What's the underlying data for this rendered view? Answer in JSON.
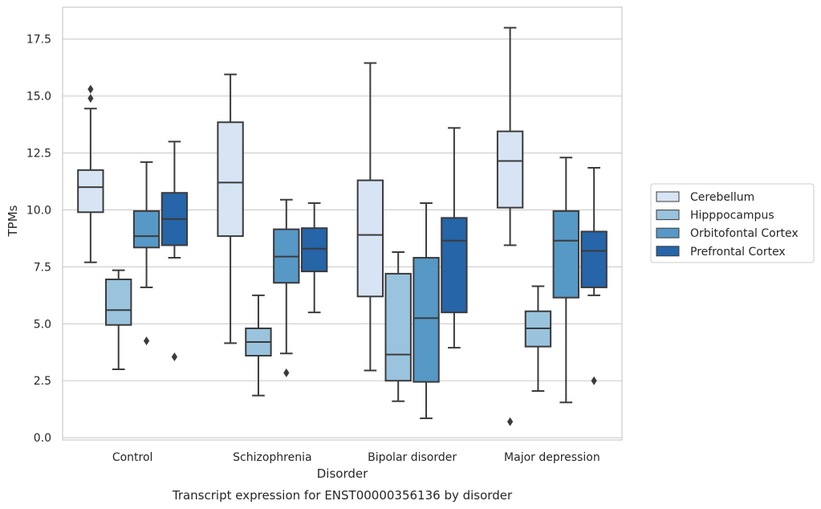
{
  "chart_data": {
    "type": "box",
    "title": "",
    "caption": "Transcript expression for ENST00000356136 by disorder",
    "xlabel": "Disorder",
    "ylabel": "TPMs",
    "ylim": [
      -0.1,
      18.9
    ],
    "yticks": [
      0.0,
      2.5,
      5.0,
      7.5,
      10.0,
      12.5,
      15.0,
      17.5
    ],
    "ytick_labels": [
      "0.0",
      "2.5",
      "5.0",
      "7.5",
      "10.0",
      "12.5",
      "15.0",
      "17.5"
    ],
    "grid": true,
    "legend_position": "right",
    "categories": [
      "Control",
      "Schizophrenia",
      "Bipolar disorder",
      "Major depression"
    ],
    "series": [
      {
        "name": "Cerebellum",
        "color": "#d6e4f3",
        "boxes": [
          {
            "whisker_low": 7.7,
            "q1": 9.9,
            "median": 11.0,
            "q3": 11.75,
            "whisker_high": 14.45,
            "outliers": [
              14.9,
              15.3
            ]
          },
          {
            "whisker_low": 4.15,
            "q1": 8.85,
            "median": 11.2,
            "q3": 13.85,
            "whisker_high": 15.95,
            "outliers": []
          },
          {
            "whisker_low": 2.95,
            "q1": 6.2,
            "median": 8.9,
            "q3": 11.3,
            "whisker_high": 16.45,
            "outliers": []
          },
          {
            "whisker_low": 8.45,
            "q1": 10.1,
            "median": 12.15,
            "q3": 13.45,
            "whisker_high": 18.0,
            "outliers": [
              0.7
            ]
          }
        ]
      },
      {
        "name": "Hipppocampus",
        "color": "#9ac3dd",
        "boxes": [
          {
            "whisker_low": 3.0,
            "q1": 4.95,
            "median": 5.6,
            "q3": 6.95,
            "whisker_high": 7.35,
            "outliers": []
          },
          {
            "whisker_low": 1.85,
            "q1": 3.6,
            "median": 4.2,
            "q3": 4.8,
            "whisker_high": 6.25,
            "outliers": []
          },
          {
            "whisker_low": 1.6,
            "q1": 2.5,
            "median": 3.65,
            "q3": 7.2,
            "whisker_high": 8.15,
            "outliers": []
          },
          {
            "whisker_low": 2.05,
            "q1": 4.0,
            "median": 4.8,
            "q3": 5.55,
            "whisker_high": 6.65,
            "outliers": []
          }
        ]
      },
      {
        "name": "Orbitofontal Cortex",
        "color": "#5698c6",
        "boxes": [
          {
            "whisker_low": 6.6,
            "q1": 8.35,
            "median": 8.85,
            "q3": 9.95,
            "whisker_high": 12.1,
            "outliers": [
              4.25
            ]
          },
          {
            "whisker_low": 3.7,
            "q1": 6.8,
            "median": 7.95,
            "q3": 9.15,
            "whisker_high": 10.45,
            "outliers": [
              2.85
            ]
          },
          {
            "whisker_low": 0.85,
            "q1": 2.45,
            "median": 5.25,
            "q3": 7.9,
            "whisker_high": 10.3,
            "outliers": []
          },
          {
            "whisker_low": 1.55,
            "q1": 6.15,
            "median": 8.65,
            "q3": 9.95,
            "whisker_high": 12.3,
            "outliers": []
          }
        ]
      },
      {
        "name": "Prefrontal Cortex",
        "color": "#2565a8",
        "boxes": [
          {
            "whisker_low": 7.9,
            "q1": 8.45,
            "median": 9.6,
            "q3": 10.75,
            "whisker_high": 13.0,
            "outliers": [
              3.55
            ]
          },
          {
            "whisker_low": 5.5,
            "q1": 7.3,
            "median": 8.3,
            "q3": 9.2,
            "whisker_high": 10.3,
            "outliers": []
          },
          {
            "whisker_low": 3.95,
            "q1": 5.5,
            "median": 8.65,
            "q3": 9.65,
            "whisker_high": 13.6,
            "outliers": []
          },
          {
            "whisker_low": 6.25,
            "q1": 6.6,
            "median": 8.2,
            "q3": 9.05,
            "whisker_high": 11.85,
            "outliers": [
              2.5
            ]
          }
        ]
      }
    ]
  },
  "colors": {
    "box_edge": "#3b3b3b",
    "grid": "#cccccc",
    "text": "#262626",
    "frame": "#cccccc"
  }
}
